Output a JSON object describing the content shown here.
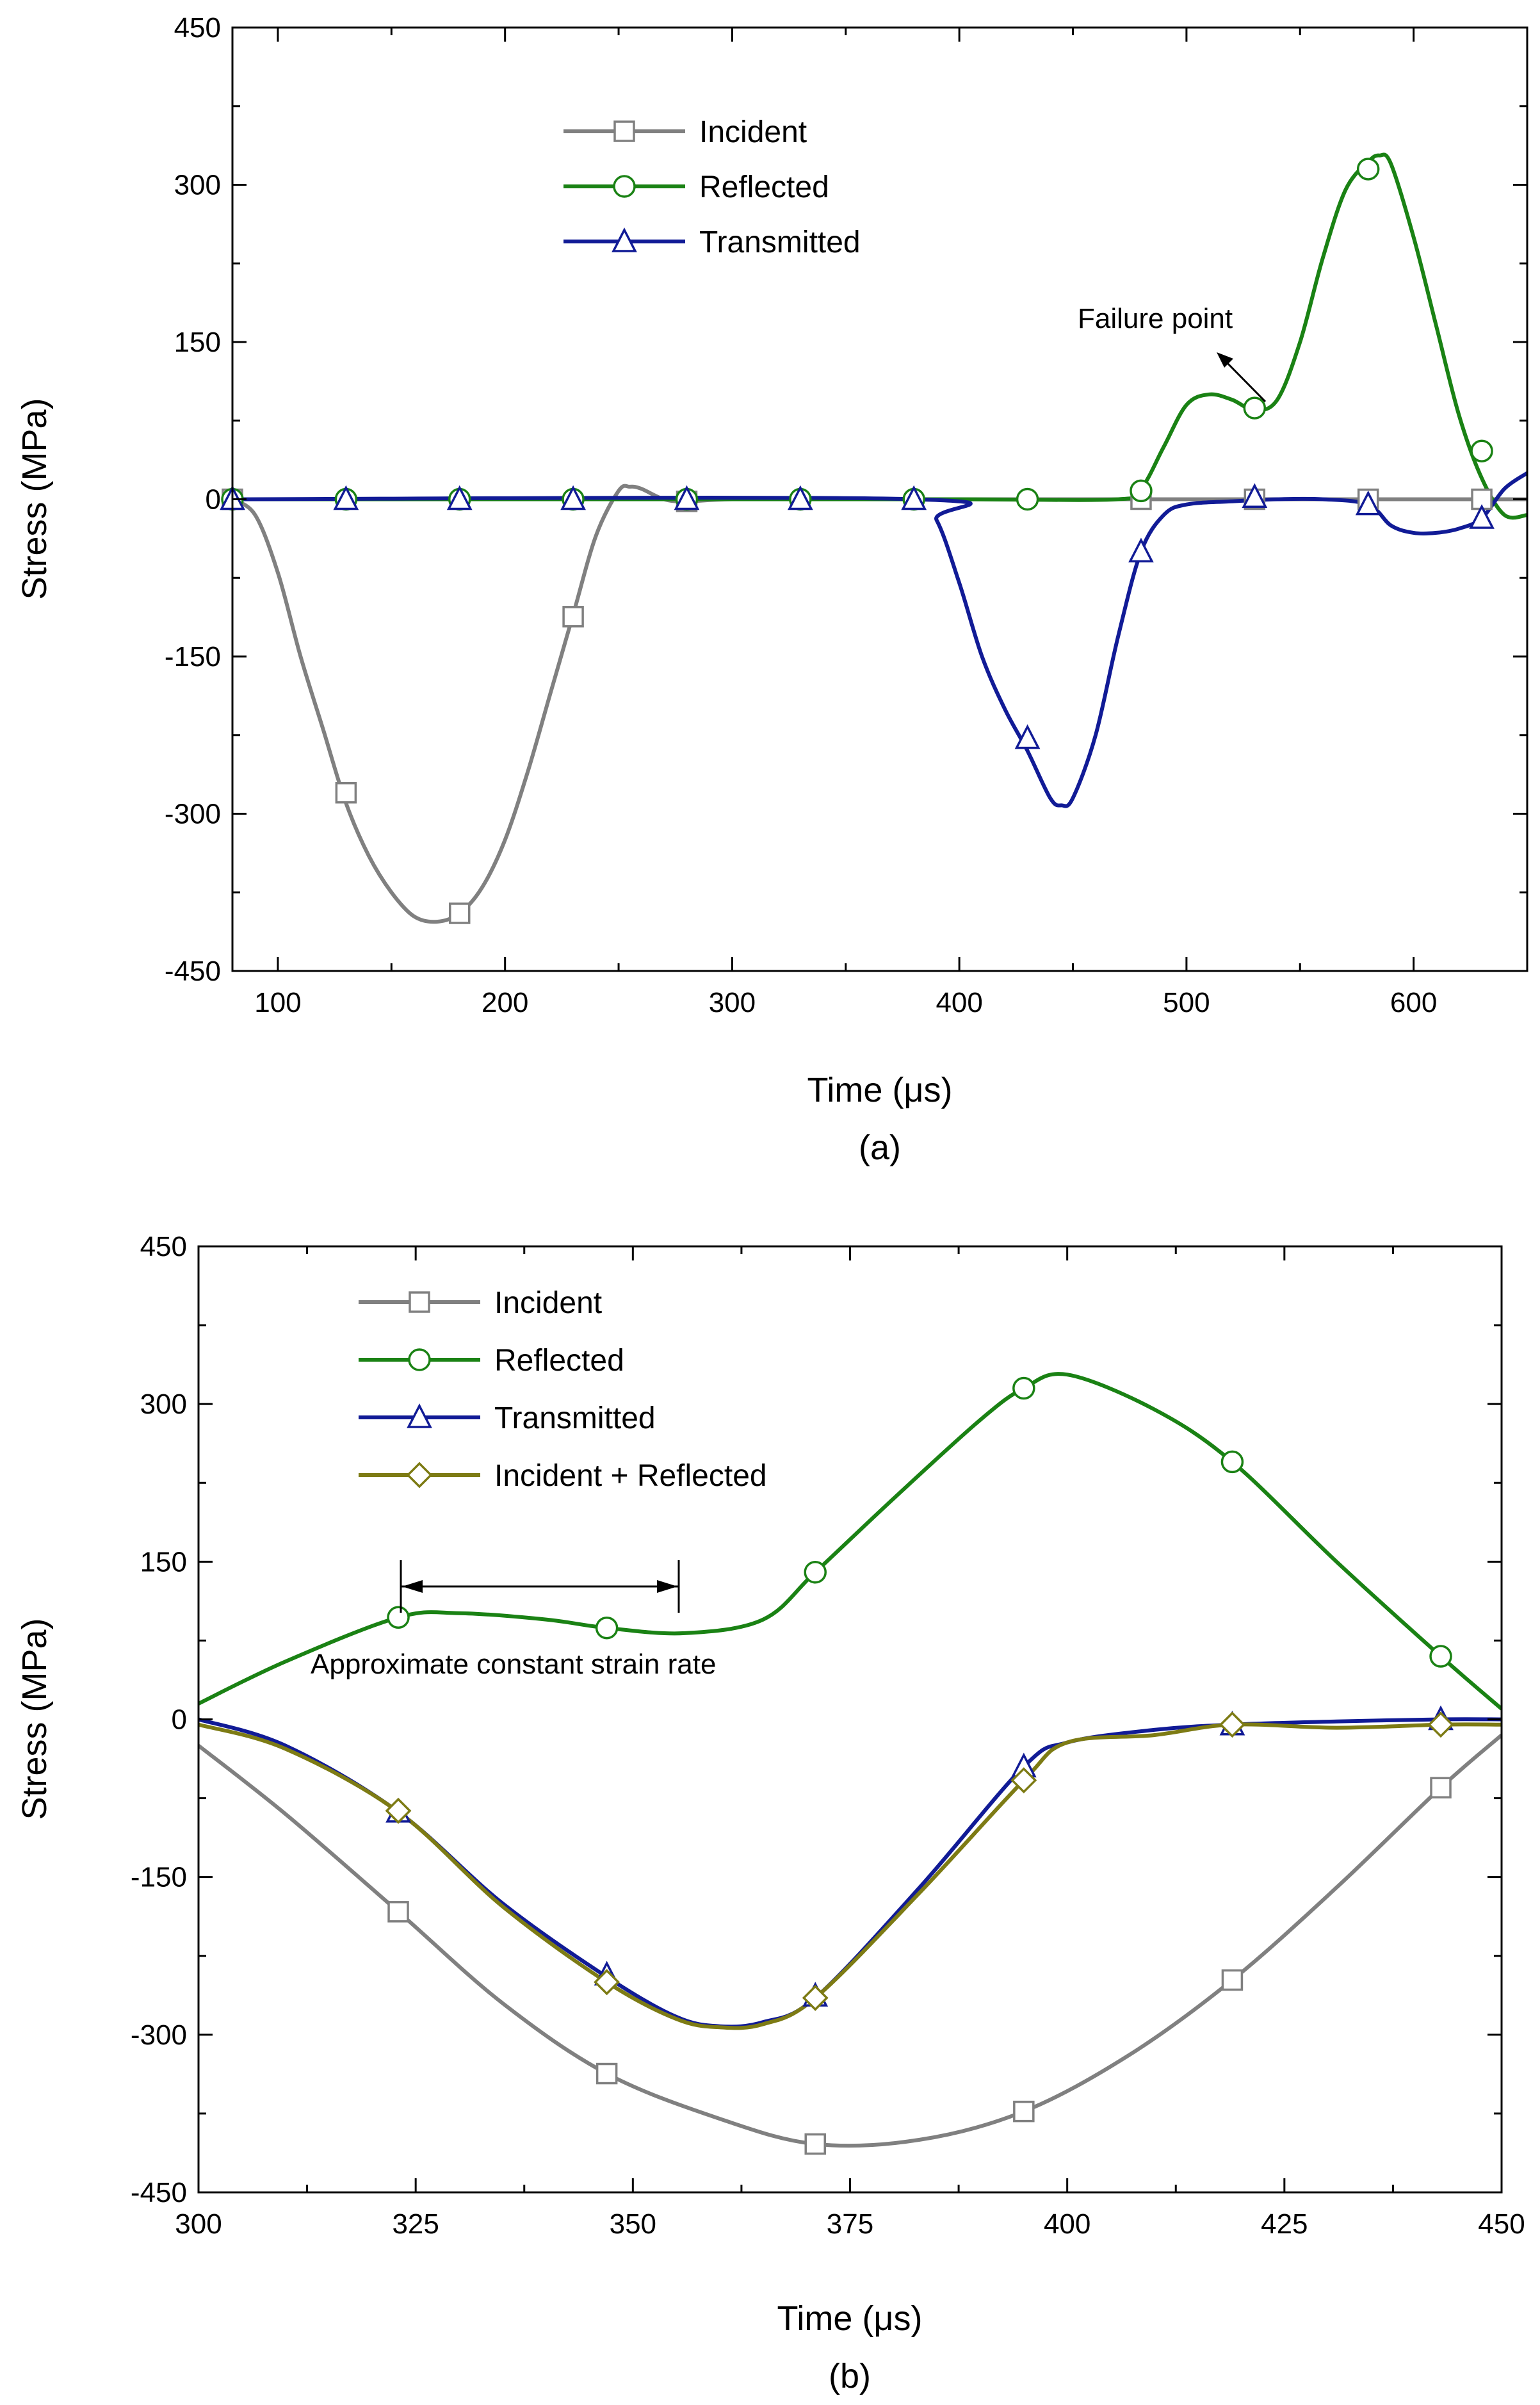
{
  "chart_data": [
    {
      "type": "line",
      "caption": "(a)",
      "title": "",
      "xlabel": "Time (μs)",
      "ylabel": "Stress (MPa)",
      "xlim": [
        80,
        650
      ],
      "ylim": [
        -450,
        450
      ],
      "xticks": [
        100,
        200,
        300,
        400,
        500,
        600
      ],
      "yticks": [
        -450,
        -300,
        -150,
        0,
        150,
        300,
        450
      ],
      "grid": false,
      "legend_position": "top-center",
      "annotations": [
        {
          "text": "Failure point",
          "points_to": {
            "x": 525,
            "y": 90
          }
        }
      ],
      "series": [
        {
          "name": "Incident",
          "color": "#808080",
          "marker": "square",
          "x": [
            80,
            90,
            100,
            110,
            120,
            130,
            140,
            150,
            160,
            170,
            180,
            190,
            200,
            210,
            220,
            230,
            240,
            250,
            255,
            260,
            270,
            280,
            300,
            350,
            400,
            450,
            500,
            550,
            600,
            650
          ],
          "y": [
            0,
            -15,
            -70,
            -150,
            -220,
            -290,
            -340,
            -375,
            -398,
            -403,
            -395,
            -370,
            -325,
            -260,
            -185,
            -110,
            -35,
            8,
            12,
            10,
            0,
            -2,
            0,
            0,
            0,
            0,
            0,
            0,
            0,
            0
          ],
          "marker_x": [
            80,
            130,
            180,
            230,
            280,
            480,
            530,
            580,
            630
          ],
          "marker_y": [
            0,
            -280,
            -395,
            -112,
            -2,
            0,
            0,
            0,
            0
          ]
        },
        {
          "name": "Reflected",
          "color": "#1a8214",
          "marker": "circle",
          "x": [
            80,
            300,
            400,
            470,
            480,
            490,
            500,
            510,
            520,
            530,
            540,
            550,
            560,
            570,
            580,
            585,
            590,
            600,
            610,
            620,
            630,
            640,
            650
          ],
          "y": [
            0,
            0,
            0,
            0,
            10,
            50,
            90,
            100,
            95,
            85,
            95,
            150,
            230,
            295,
            322,
            328,
            320,
            250,
            165,
            80,
            20,
            -15,
            -15
          ],
          "marker_x": [
            80,
            130,
            180,
            230,
            280,
            330,
            380,
            430,
            480,
            530,
            580,
            630
          ],
          "marker_y": [
            0,
            0,
            0,
            0,
            0,
            0,
            0,
            0,
            8,
            87,
            315,
            46
          ]
        },
        {
          "name": "Transmitted",
          "color": "#111b96",
          "marker": "triangle",
          "x": [
            80,
            380,
            390,
            400,
            410,
            420,
            430,
            440,
            445,
            450,
            460,
            470,
            480,
            490,
            500,
            520,
            540,
            560,
            580,
            590,
            600,
            610,
            620,
            630,
            640,
            650
          ],
          "y": [
            0,
            0,
            -20,
            -80,
            -150,
            -200,
            -240,
            -285,
            -292,
            -285,
            -225,
            -130,
            -50,
            -15,
            -5,
            -2,
            0,
            0,
            -5,
            -25,
            -32,
            -32,
            -28,
            -18,
            10,
            25
          ],
          "marker_x": [
            80,
            130,
            180,
            230,
            280,
            330,
            380,
            430,
            480,
            530,
            580,
            630
          ],
          "marker_y": [
            0,
            0,
            0,
            0,
            0,
            0,
            0,
            -228,
            -50,
            2,
            -5,
            -18
          ]
        }
      ]
    },
    {
      "type": "line",
      "caption": "(b)",
      "title": "",
      "xlabel": "Time (μs)",
      "ylabel": "Stress (MPa)",
      "xlim": [
        300,
        450
      ],
      "ylim": [
        -450,
        450
      ],
      "xticks": [
        300,
        325,
        350,
        375,
        400,
        425,
        450
      ],
      "yticks": [
        -450,
        -300,
        -150,
        0,
        150,
        300,
        450
      ],
      "grid": false,
      "legend_position": "top-left",
      "annotations": [
        {
          "text": "Approximate constant strain rate",
          "span_x": [
            323,
            356
          ],
          "at_y": 118
        }
      ],
      "series": [
        {
          "name": "Incident",
          "color": "#808080",
          "marker": "square",
          "x": [
            300,
            310,
            323,
            335,
            347,
            360,
            371,
            383,
            395,
            407,
            419,
            431,
            443,
            450
          ],
          "y": [
            -25,
            -90,
            -183,
            -270,
            -337,
            -380,
            -404,
            -400,
            -373,
            -320,
            -248,
            -160,
            -65,
            -15
          ],
          "marker_x": [
            323,
            347,
            371,
            395,
            419,
            443
          ],
          "marker_y": [
            -183,
            -337,
            -404,
            -373,
            -248,
            -65
          ]
        },
        {
          "name": "Reflected",
          "color": "#1a8214",
          "marker": "circle",
          "x": [
            300,
            310,
            323,
            330,
            340,
            347,
            356,
            365,
            371,
            380,
            390,
            395,
            400,
            410,
            419,
            431,
            443,
            450
          ],
          "y": [
            15,
            55,
            97,
            101,
            95,
            87,
            82,
            95,
            140,
            210,
            285,
            315,
            328,
            295,
            245,
            150,
            60,
            10
          ],
          "marker_x": [
            323,
            347,
            371,
            395,
            419,
            443
          ],
          "marker_y": [
            97,
            87,
            140,
            315,
            245,
            60
          ]
        },
        {
          "name": "Transmitted",
          "color": "#111b96",
          "marker": "triangle",
          "x": [
            300,
            310,
            323,
            335,
            347,
            355,
            360,
            365,
            371,
            383,
            395,
            400,
            410,
            419,
            431,
            443,
            450
          ],
          "y": [
            0,
            -25,
            -88,
            -175,
            -245,
            -283,
            -292,
            -288,
            -265,
            -160,
            -45,
            -22,
            -10,
            -5,
            -2,
            0,
            0
          ],
          "marker_x": [
            323,
            347,
            371,
            395,
            419,
            443
          ],
          "marker_y": [
            -88,
            -243,
            -263,
            -45,
            -5,
            0
          ]
        },
        {
          "name": "Incident + Reflected",
          "color": "#7d7b14",
          "marker": "diamond",
          "x": [
            300,
            310,
            323,
            335,
            347,
            355,
            360,
            365,
            371,
            383,
            395,
            400,
            410,
            419,
            431,
            443,
            450
          ],
          "y": [
            -5,
            -28,
            -88,
            -178,
            -250,
            -285,
            -293,
            -290,
            -265,
            -165,
            -58,
            -22,
            -15,
            -5,
            -8,
            -5,
            -5
          ],
          "marker_x": [
            323,
            347,
            371,
            395,
            419,
            443
          ],
          "marker_y": [
            -87,
            -250,
            -265,
            -58,
            -5,
            -5
          ]
        }
      ]
    }
  ]
}
